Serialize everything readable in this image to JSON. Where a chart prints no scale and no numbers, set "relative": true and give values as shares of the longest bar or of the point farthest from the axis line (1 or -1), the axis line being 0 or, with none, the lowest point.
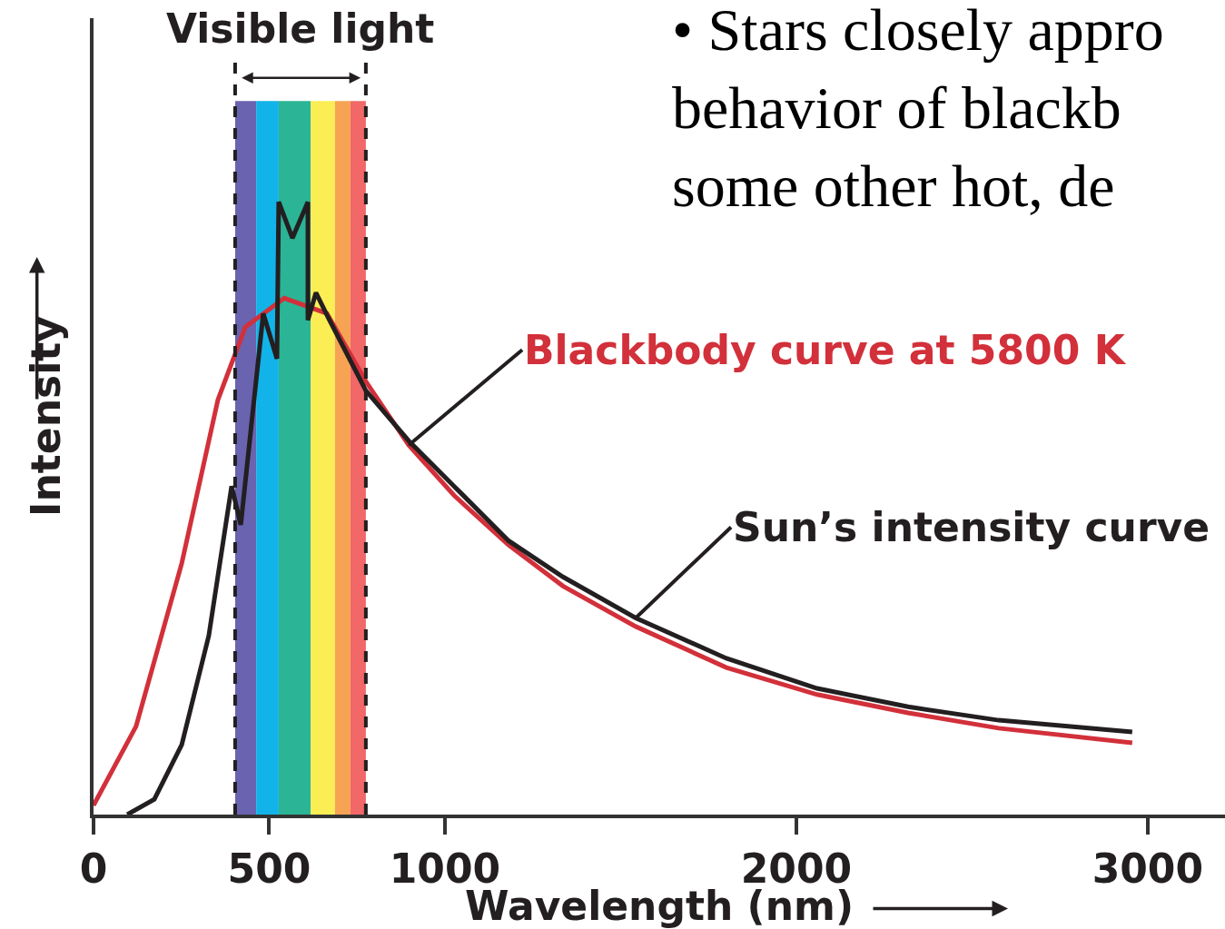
{
  "chart_data": {
    "type": "line",
    "relative": true,
    "xlabel": "Wavelength (nm)",
    "ylabel": "Intensity",
    "x": [
      0,
      121,
      251,
      354,
      432,
      543,
      664,
      775,
      897,
      1026,
      1181,
      1336,
      1543,
      1801,
      2059,
      2318,
      2576,
      2956
    ],
    "series": [
      {
        "name": "Blackbody curve at 5800 K",
        "color": "#d2303a",
        "values": [
          0.015,
          0.144,
          0.41,
          0.677,
          0.796,
          0.843,
          0.818,
          0.707,
          0.603,
          0.521,
          0.44,
          0.373,
          0.307,
          0.24,
          0.196,
          0.166,
          0.141,
          0.117
        ]
      },
      {
        "name": "Sun’s intensity curve",
        "color": "#231f20",
        "x": [
          96,
          173,
          251,
          328,
          393,
          419,
          483,
          522,
          527,
          566,
          610,
          610,
          633,
          669,
          775,
          897,
          1026,
          1181,
          1336,
          1543,
          1801,
          2059,
          2318,
          2576,
          2956
        ],
        "values": [
          0,
          0.025,
          0.114,
          0.292,
          0.536,
          0.473,
          0.818,
          0.744,
          1.0,
          0.941,
          1.0,
          0.807,
          0.852,
          0.81,
          0.692,
          0.61,
          0.536,
          0.447,
          0.388,
          0.321,
          0.255,
          0.206,
          0.176,
          0.154,
          0.135
        ]
      }
    ],
    "xlim": [
      0,
      3220
    ],
    "xticks": [
      0,
      500,
      1000,
      2000,
      3000
    ],
    "bands": [
      {
        "axis": "x",
        "from": 403,
        "to": 463,
        "color": "#6a63b0"
      },
      {
        "axis": "x",
        "from": 463,
        "to": 527,
        "color": "#12b3e8"
      },
      {
        "axis": "x",
        "from": 527,
        "to": 618,
        "color": "#2bb495"
      },
      {
        "axis": "x",
        "from": 618,
        "to": 687,
        "color": "#fbee55"
      },
      {
        "axis": "x",
        "from": 687,
        "to": 731,
        "color": "#f7a354"
      },
      {
        "axis": "x",
        "from": 731,
        "to": 775,
        "color": "#f26767"
      }
    ],
    "ref_lines": [
      {
        "axis": "x",
        "value": 403,
        "line_style": "dashed",
        "color": "#231f20"
      },
      {
        "axis": "x",
        "value": 775,
        "line_style": "dashed",
        "color": "#231f20"
      }
    ],
    "annotations": [
      "Visible light",
      "• Stars closely appro\nbehavior of blackb\nsome other hot, de"
    ],
    "grid": false,
    "legend": false,
    "marker": "none",
    "line_style": "solid"
  }
}
